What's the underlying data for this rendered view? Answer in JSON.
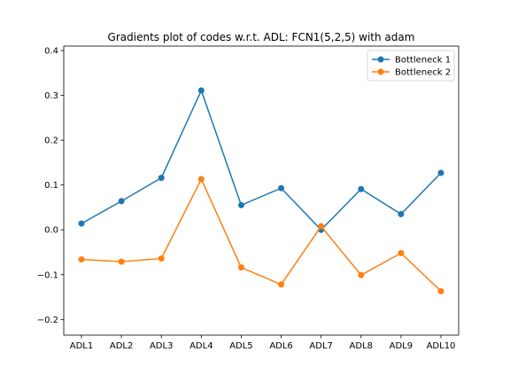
{
  "chart_data": {
    "type": "line",
    "title": "Gradients plot of codes w.r.t. ADL: FCN1(5,2,5) with adam",
    "xlabel": "",
    "ylabel": "",
    "categories": [
      "ADL1",
      "ADL2",
      "ADL3",
      "ADL4",
      "ADL5",
      "ADL6",
      "ADL7",
      "ADL8",
      "ADL9",
      "ADL10"
    ],
    "ylim": [
      -0.235,
      0.41
    ],
    "yticks": [
      -0.2,
      -0.1,
      0.0,
      0.1,
      0.2,
      0.3,
      0.4
    ],
    "ytick_labels": [
      "−0.2",
      "−0.1",
      "0.0",
      "0.1",
      "0.2",
      "0.3",
      "0.4"
    ],
    "grid": false,
    "legend_position": "top-right",
    "series": [
      {
        "name": "Bottleneck 1",
        "color": "#1f77b4",
        "values": [
          0.014,
          0.064,
          0.116,
          0.311,
          0.055,
          0.093,
          0.0,
          0.091,
          0.035,
          0.127
        ]
      },
      {
        "name": "Bottleneck 2",
        "color": "#ff7f0e",
        "values": [
          -0.066,
          -0.071,
          -0.064,
          0.113,
          -0.084,
          -0.122,
          0.008,
          -0.101,
          -0.052,
          -0.137
        ]
      }
    ]
  }
}
